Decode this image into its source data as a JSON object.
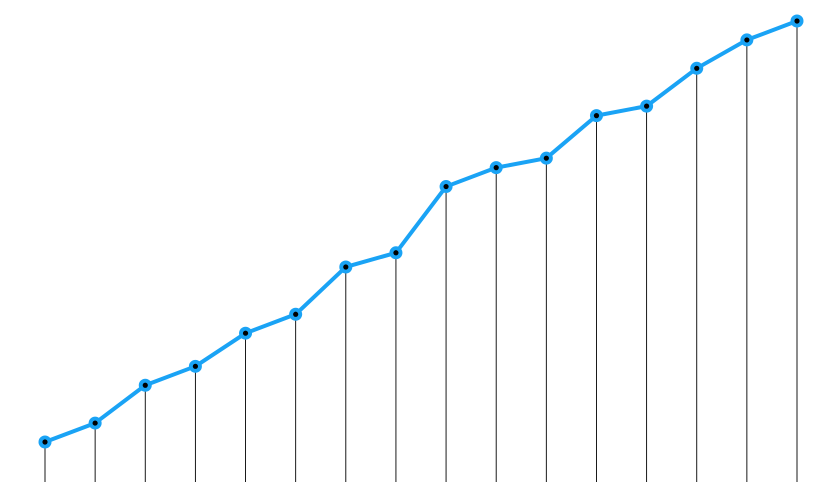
{
  "chart_data": {
    "type": "line",
    "x": [
      1,
      2,
      3,
      4,
      5,
      6,
      7,
      8,
      9,
      10,
      11,
      12,
      13,
      14,
      15,
      16
    ],
    "series": [
      {
        "values": [
          0,
          4,
          12,
          16,
          23,
          27,
          37,
          40,
          54,
          58,
          60,
          69,
          71,
          79,
          85,
          89
        ]
      }
    ],
    "ylim": [
      0,
      89
    ],
    "grid": false,
    "legend": "none",
    "style": {
      "line_color": "#1aa3f5",
      "marker_center_color": "#000000",
      "drop_line_color": "#000000"
    }
  }
}
